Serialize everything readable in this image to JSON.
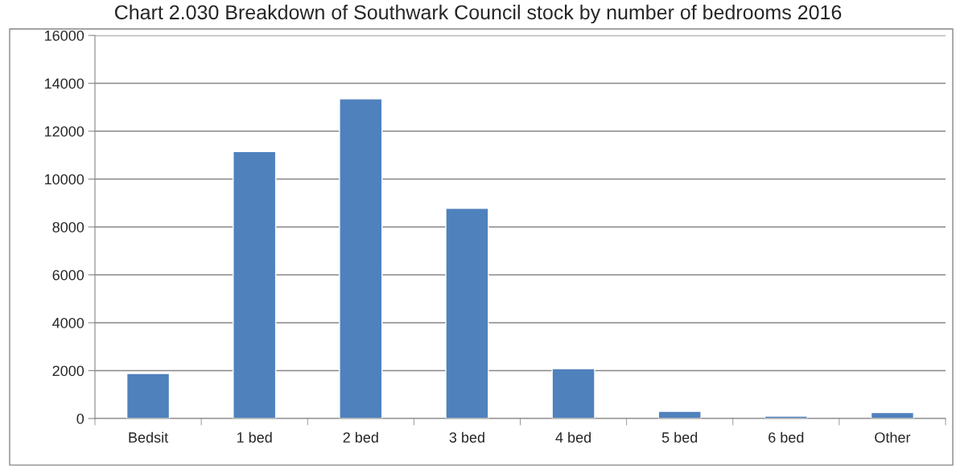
{
  "chart_data": {
    "type": "bar",
    "title": "Chart 2.030 Breakdown of Southwark Council stock by number of bedrooms 2016",
    "categories": [
      "Bedsit",
      "1 bed",
      "2 bed",
      "3 bed",
      "4 bed",
      "5 bed",
      "6 bed",
      "Other"
    ],
    "values": [
      1880,
      11150,
      13350,
      8780,
      2080,
      300,
      100,
      250
    ],
    "color": "#4f81bd",
    "ylim": [
      0,
      16000
    ],
    "yticks": [
      0,
      2000,
      4000,
      6000,
      8000,
      10000,
      12000,
      14000,
      16000
    ],
    "grid": "y",
    "legend": false
  }
}
